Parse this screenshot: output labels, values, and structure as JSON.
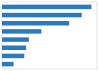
{
  "chart_data": {
    "type": "bar",
    "orientation": "horizontal",
    "values": [
      19.3,
      17.2,
      14.5,
      8.5,
      5.8,
      5.2,
      4.8,
      2.5
    ],
    "color": "#2a7abf",
    "xlim": [
      0,
      20.5
    ],
    "tick_labels": false
  }
}
